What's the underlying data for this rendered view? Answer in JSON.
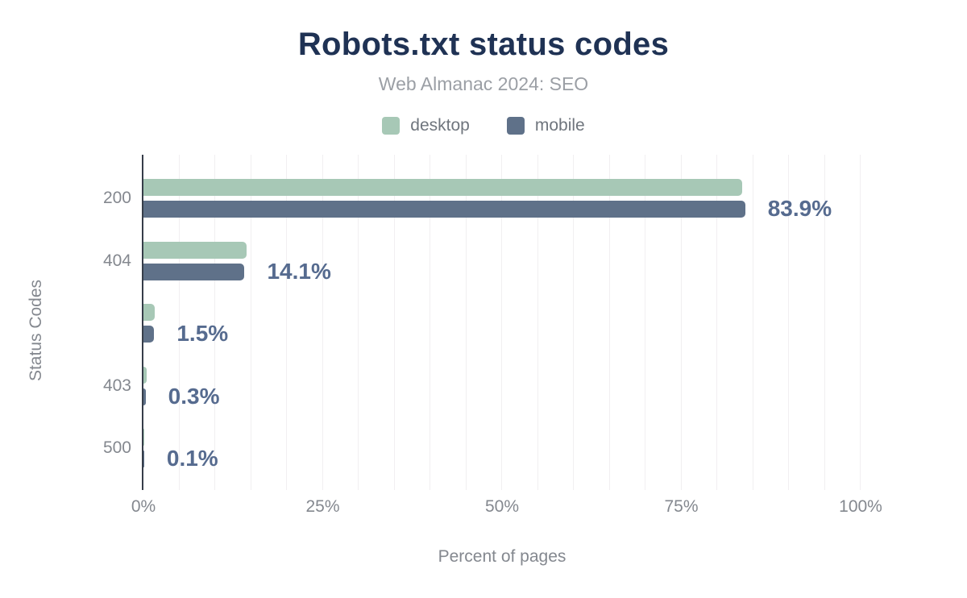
{
  "header": {
    "title": "Robots.txt status codes",
    "subtitle": "Web Almanac 2024: SEO"
  },
  "colors": {
    "title": "#1f3254",
    "desktop": "#a7c8b6",
    "mobile": "#5f7189",
    "data_label": "#566b8f",
    "axis_line": "#363d49",
    "muted_text": "#84888f"
  },
  "chart_data": {
    "type": "bar",
    "orientation": "horizontal",
    "title": "Robots.txt status codes",
    "subtitle": "Web Almanac 2024: SEO",
    "xlabel": "Percent of pages",
    "ylabel": "Status Codes",
    "categories": [
      "200",
      "404",
      "",
      "403",
      "500"
    ],
    "series": [
      {
        "name": "desktop",
        "color": "#a7c8b6",
        "values": [
          83.5,
          14.4,
          1.6,
          0.4,
          0.1
        ]
      },
      {
        "name": "mobile",
        "color": "#5f7189",
        "values": [
          83.9,
          14.1,
          1.5,
          0.3,
          0.1
        ]
      }
    ],
    "data_labels": [
      "83.9%",
      "14.1%",
      "1.5%",
      "0.3%",
      "0.1%"
    ],
    "data_label_series": "mobile",
    "x_ticks": [
      "0%",
      "25%",
      "50%",
      "75%",
      "100%"
    ],
    "xlim": [
      0,
      100
    ],
    "grid": "vertical gridlines every 5%",
    "legend_position": "top center"
  }
}
